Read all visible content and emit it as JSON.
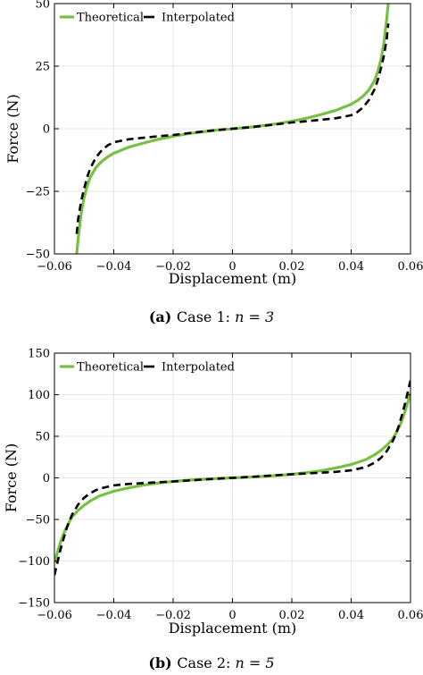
{
  "chart_data": [
    {
      "type": "line",
      "xlabel": "Displacement (m)",
      "ylabel": "Force (N)",
      "xlim": [
        -0.06,
        0.06
      ],
      "ylim": [
        -50,
        50
      ],
      "xticks": [
        -0.06,
        -0.04,
        -0.02,
        0,
        0.02,
        0.04,
        0.06
      ],
      "xtick_labels": [
        "-0.06",
        "-0.04",
        "-0.02",
        "0",
        "0.02",
        "0.04",
        "0.06"
      ],
      "yticks": [
        -50,
        -25,
        0,
        25,
        50
      ],
      "ytick_labels": [
        "-50",
        "-25",
        "0",
        "25",
        "50"
      ],
      "grid": true,
      "legend_position": "top-left",
      "caption_prefix": "(a)",
      "caption_text": "Case 1: ",
      "caption_math": "n = 3",
      "series": [
        {
          "name": "Theoretical",
          "color": "#77c043",
          "style": "solid",
          "x": [
            -0.0525,
            -0.052,
            -0.051,
            -0.05,
            -0.049,
            -0.048,
            -0.046,
            -0.044,
            -0.042,
            -0.04,
            -0.035,
            -0.03,
            -0.025,
            -0.02,
            -0.015,
            -0.01,
            -0.005,
            0,
            0.005,
            0.01,
            0.015,
            0.02,
            0.025,
            0.03,
            0.035,
            0.04,
            0.042,
            0.044,
            0.046,
            0.048,
            0.049,
            0.05,
            0.051,
            0.052,
            0.0525
          ],
          "y": [
            -50,
            -44,
            -34,
            -27.5,
            -23,
            -19.5,
            -15.5,
            -13,
            -11.2,
            -9.8,
            -7.4,
            -5.7,
            -4.2,
            -3,
            -2,
            -1.2,
            -0.5,
            0,
            0.5,
            1.2,
            2,
            3,
            4.2,
            5.7,
            7.4,
            9.8,
            11.2,
            13,
            15.5,
            19.5,
            23,
            27.5,
            34,
            44,
            50
          ]
        },
        {
          "name": "Interpolated",
          "color": "#000000",
          "style": "dashed",
          "x": [
            -0.0525,
            -0.052,
            -0.051,
            -0.05,
            -0.049,
            -0.048,
            -0.046,
            -0.044,
            -0.042,
            -0.04,
            -0.035,
            -0.03,
            -0.025,
            -0.02,
            -0.015,
            -0.01,
            -0.005,
            0,
            0.005,
            0.01,
            0.015,
            0.02,
            0.025,
            0.03,
            0.035,
            0.04,
            0.042,
            0.044,
            0.046,
            0.048,
            0.049,
            0.05,
            0.051,
            0.052,
            0.0525
          ],
          "y": [
            -42,
            -36,
            -29,
            -24,
            -19.5,
            -16,
            -11.5,
            -8.5,
            -6.6,
            -5.4,
            -4.2,
            -3.6,
            -3,
            -2.5,
            -1.8,
            -1.1,
            -0.5,
            0,
            0.5,
            1.1,
            1.8,
            2.5,
            3,
            3.6,
            4.2,
            5.4,
            6.6,
            8.5,
            11.5,
            16,
            19.5,
            24,
            29,
            36,
            42
          ]
        }
      ]
    },
    {
      "type": "line",
      "xlabel": "Displacement (m)",
      "ylabel": "Force (N)",
      "xlim": [
        -0.06,
        0.06
      ],
      "ylim": [
        -150,
        150
      ],
      "xticks": [
        -0.06,
        -0.04,
        -0.02,
        0,
        0.02,
        0.04,
        0.06
      ],
      "xtick_labels": [
        "-0.06",
        "-0.04",
        "-0.02",
        "0",
        "0.02",
        "0.04",
        "0.06"
      ],
      "yticks": [
        -150,
        -100,
        -50,
        0,
        50,
        100,
        150
      ],
      "ytick_labels": [
        "-150",
        "-100",
        "-50",
        "0",
        "50",
        "100",
        "150"
      ],
      "grid": true,
      "legend_position": "top-left",
      "caption_prefix": "(b)",
      "caption_text": "Case 2: ",
      "caption_math": "n = 5",
      "series": [
        {
          "name": "Theoretical",
          "color": "#77c043",
          "style": "solid",
          "x": [
            -0.06,
            -0.059,
            -0.058,
            -0.057,
            -0.056,
            -0.055,
            -0.054,
            -0.052,
            -0.05,
            -0.048,
            -0.045,
            -0.04,
            -0.035,
            -0.03,
            -0.025,
            -0.02,
            -0.015,
            -0.01,
            -0.005,
            0,
            0.005,
            0.01,
            0.015,
            0.02,
            0.025,
            0.03,
            0.035,
            0.04,
            0.045,
            0.048,
            0.05,
            0.052,
            0.054,
            0.055,
            0.056,
            0.057,
            0.058,
            0.059,
            0.06
          ],
          "y": [
            -102,
            -90,
            -78,
            -68,
            -60,
            -53,
            -47,
            -39,
            -33,
            -28,
            -22,
            -16,
            -12,
            -8.7,
            -6.2,
            -4.3,
            -2.8,
            -1.7,
            -0.8,
            0,
            0.8,
            1.7,
            2.8,
            4.3,
            6.2,
            8.7,
            12,
            16,
            22,
            28,
            33,
            39,
            47,
            53,
            60,
            68,
            78,
            90,
            102
          ]
        },
        {
          "name": "Interpolated",
          "color": "#000000",
          "style": "dashed",
          "x": [
            -0.06,
            -0.059,
            -0.058,
            -0.057,
            -0.056,
            -0.055,
            -0.054,
            -0.052,
            -0.05,
            -0.048,
            -0.045,
            -0.04,
            -0.035,
            -0.03,
            -0.025,
            -0.02,
            -0.015,
            -0.01,
            -0.005,
            0,
            0.005,
            0.01,
            0.015,
            0.02,
            0.025,
            0.03,
            0.035,
            0.04,
            0.045,
            0.048,
            0.05,
            0.052,
            0.054,
            0.055,
            0.056,
            0.057,
            0.058,
            0.059,
            0.06
          ],
          "y": [
            -117,
            -102,
            -87,
            -74,
            -62,
            -52,
            -44,
            -32,
            -24,
            -18.5,
            -13,
            -9,
            -7.3,
            -6.2,
            -5.3,
            -4.3,
            -3.2,
            -2,
            -1,
            0,
            1,
            2,
            3.2,
            4.3,
            5.3,
            6.2,
            7.3,
            9,
            13,
            18.5,
            24,
            32,
            44,
            52,
            62,
            74,
            87,
            102,
            117
          ]
        }
      ]
    }
  ]
}
